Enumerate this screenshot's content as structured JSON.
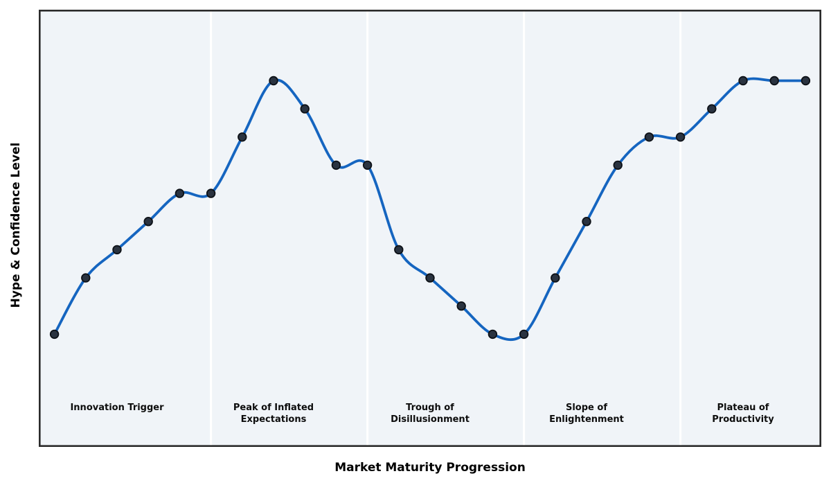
{
  "chart": {
    "ylabel": "Hype & Confidence Level",
    "xlabel": "Market Maturity Progression",
    "colors": {
      "plot_bg": "#f0f4f8",
      "divider": "#ffffff",
      "border": "#2a2a2a",
      "line": "#1565c0",
      "marker_fill": "#2a3340",
      "marker_edge": "#0d1117",
      "label_text": "#0d0d0d"
    },
    "phases": [
      {
        "label": "Innovation Trigger",
        "lines": [
          "Innovation Trigger"
        ],
        "x": 2
      },
      {
        "label": "Peak of Inflated Expectations",
        "lines": [
          "Peak of Inflated",
          "Expectations"
        ],
        "x": 7
      },
      {
        "label": "Trough of Disillusionment",
        "lines": [
          "Trough of",
          "Disillusionment"
        ],
        "x": 12
      },
      {
        "label": "Slope of Enlightenment",
        "lines": [
          "Slope of",
          "Enlightenment"
        ],
        "x": 17
      },
      {
        "label": "Plateau of Productivity",
        "lines": [
          "Plateau of",
          "Productivity"
        ],
        "x": 22
      }
    ]
  },
  "chart_data": {
    "type": "line",
    "title": "",
    "xlabel": "Market Maturity Progression",
    "ylabel": "Hype & Confidence Level",
    "x": [
      0,
      1,
      2,
      3,
      4,
      5,
      6,
      7,
      8,
      9,
      10,
      11,
      12,
      13,
      14,
      15,
      16,
      17,
      18,
      19,
      20,
      21,
      22,
      23,
      24
    ],
    "values": [
      5,
      15,
      20,
      25,
      30,
      30,
      40,
      50,
      45,
      35,
      35,
      20,
      15,
      10,
      5,
      5,
      15,
      25,
      35,
      40,
      40,
      45,
      50,
      50,
      50
    ],
    "xlim": [
      -0.5,
      24.5
    ],
    "ylim": [
      -15,
      62.6
    ],
    "grid": false,
    "tick_labels": "none",
    "line_style": "smooth-spline",
    "marker": "circle",
    "phase_boundaries_x": [
      5,
      10,
      15,
      20
    ],
    "phase_labels": [
      "Innovation Trigger",
      "Peak of Inflated Expectations",
      "Trough of Disillusionment",
      "Slope of Enlightenment",
      "Plateau of Productivity"
    ],
    "phase_label_x": [
      2,
      7,
      12,
      17,
      22
    ]
  }
}
